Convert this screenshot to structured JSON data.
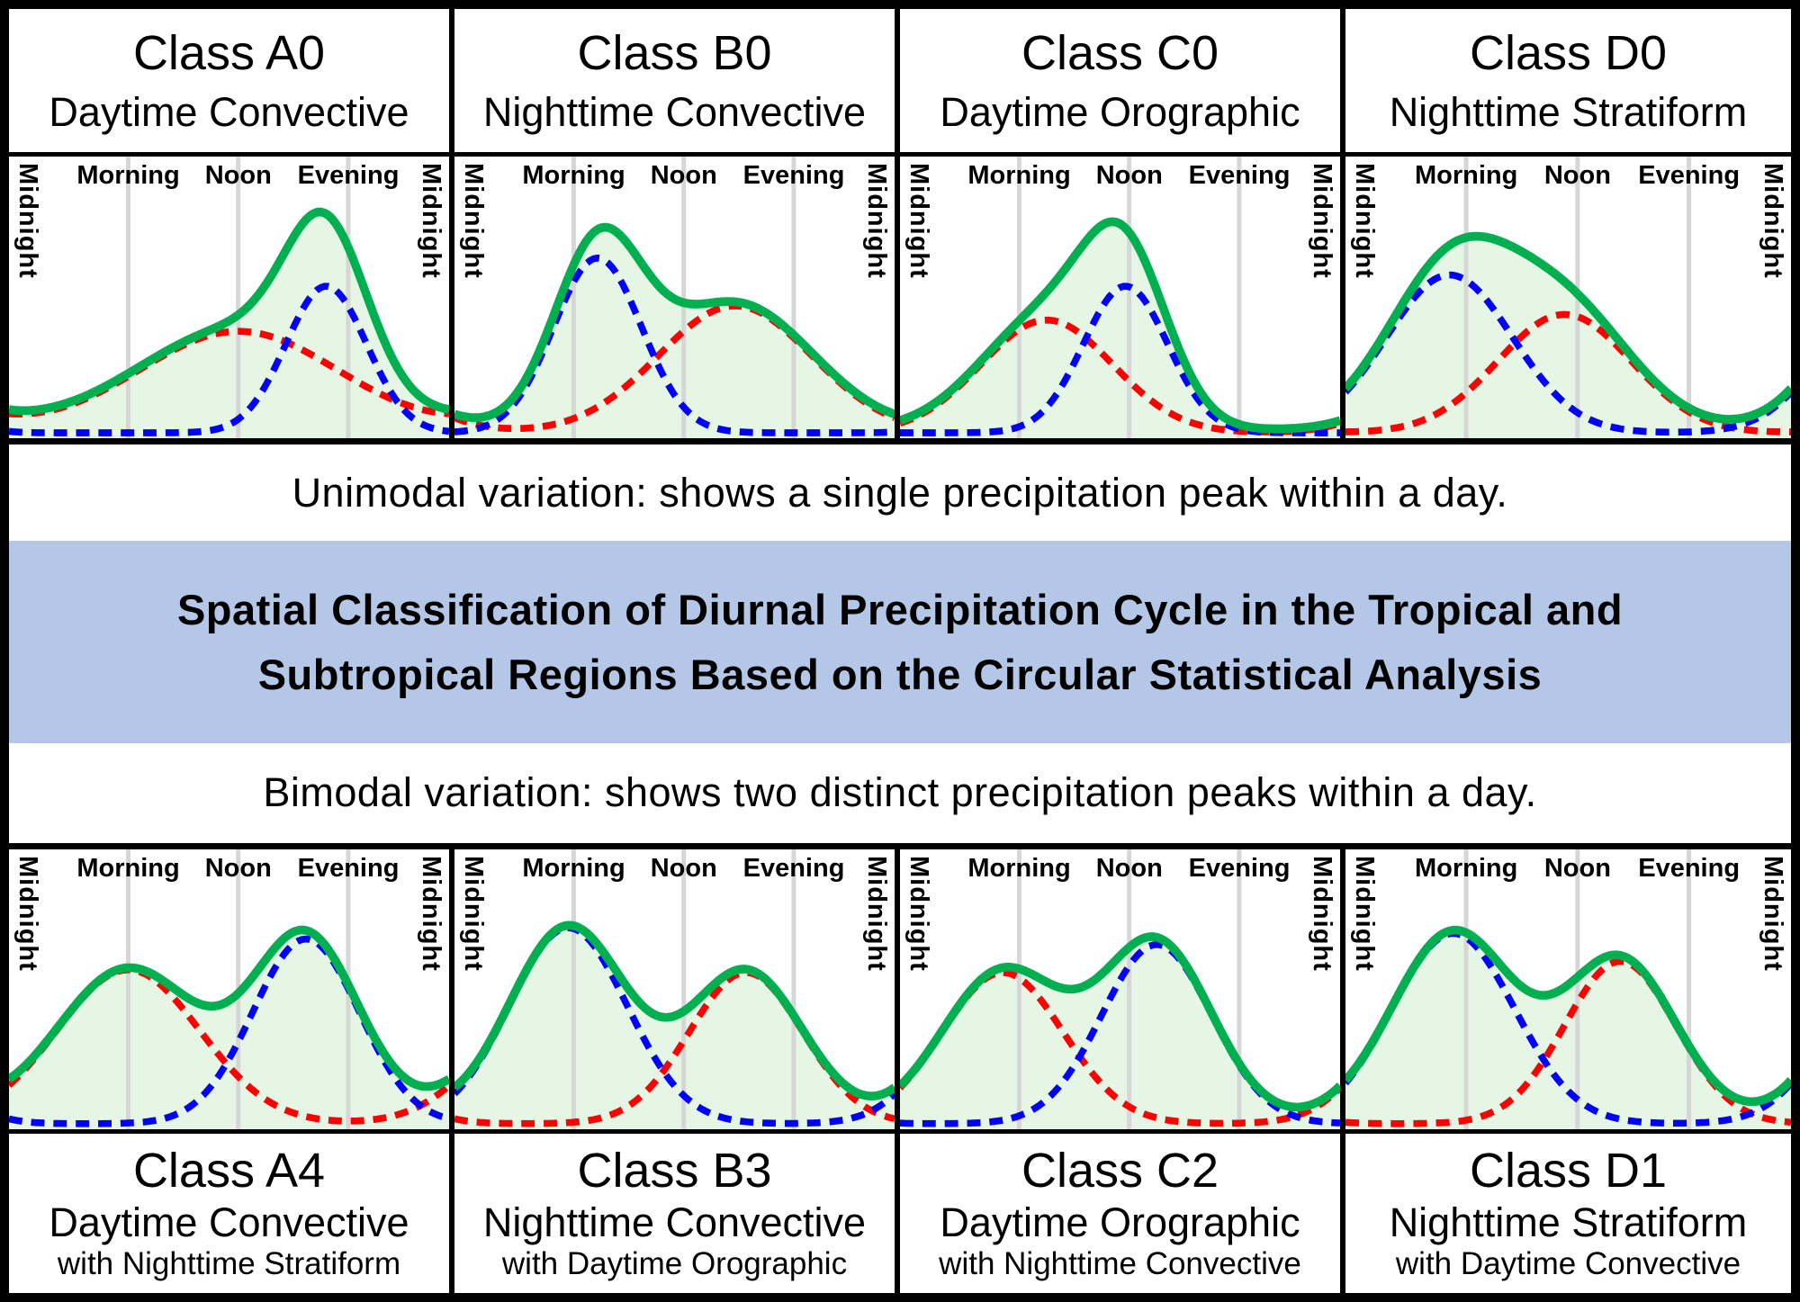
{
  "captions": {
    "unimodal": "Unimodal variation: shows a single precipitation peak within a day.",
    "bimodal": "Bimodal variation: shows two distinct precipitation peaks within a day."
  },
  "banner": {
    "bg": "#b4c7e7",
    "lines": [
      "Spatial Classification of Diurnal Precipitation Cycle in the Tropical and",
      "Subtropical Regions Based on the Circular Statistical Analysis"
    ]
  },
  "axis": {
    "midnight": "Midnight",
    "morning": "Morning",
    "noon": "Noon",
    "evening": "Evening",
    "range_hours": [
      0,
      24
    ],
    "gridline_hours": [
      6.5,
      12.5,
      18.5
    ],
    "tick_labels": [
      "Midnight",
      "Morning",
      "Noon",
      "Evening",
      "Midnight"
    ]
  },
  "colors": {
    "total_line": "#00B050",
    "area_fill": "#E6F6E4",
    "component_red": "#FF0000",
    "component_blue": "#0000FF",
    "gridline": "#D6D6D6",
    "border": "#000000",
    "banner_bg": "#B4C7E7"
  },
  "chart_data": [
    {
      "id": "A0",
      "type": "line",
      "row": "top",
      "modality": "unimodal",
      "class_label": "Class A0",
      "type_label": "Daytime Convective",
      "sub_label": "",
      "curves": [
        {
          "name": "red-dashed-component",
          "style": "dashed",
          "color_key": "component_red",
          "peak_hour": 12.5,
          "peak_height": 0.36,
          "sigma_hours": 5.5
        },
        {
          "name": "blue-dashed-component",
          "style": "dashed",
          "color_key": "component_blue",
          "peak_hour": 17.3,
          "peak_height": 0.52,
          "sigma_hours": 2.2
        },
        {
          "name": "green-total",
          "style": "solid",
          "color_key": "total_line",
          "definition": "sum_of_dashed_components_plus_base",
          "base": 0.03
        }
      ]
    },
    {
      "id": "B0",
      "type": "line",
      "row": "top",
      "modality": "unimodal",
      "class_label": "Class B0",
      "type_label": "Nighttime Convective",
      "sub_label": "",
      "curves": [
        {
          "name": "red-dashed-component",
          "style": "dashed",
          "color_key": "component_red",
          "peak_hour": 15.3,
          "peak_height": 0.45,
          "sigma_hours": 4.2
        },
        {
          "name": "blue-dashed-component",
          "style": "dashed",
          "color_key": "component_blue",
          "peak_hour": 7.8,
          "peak_height": 0.62,
          "sigma_hours": 2.4
        },
        {
          "name": "green-total",
          "style": "solid",
          "color_key": "total_line",
          "definition": "sum_of_dashed_components_plus_base",
          "base": 0.03
        }
      ]
    },
    {
      "id": "C0",
      "type": "line",
      "row": "top",
      "modality": "unimodal",
      "class_label": "Class C0",
      "type_label": "Daytime Orographic",
      "sub_label": "",
      "curves": [
        {
          "name": "red-dashed-component",
          "style": "dashed",
          "color_key": "component_red",
          "peak_hour": 8.0,
          "peak_height": 0.4,
          "sigma_hours": 3.6
        },
        {
          "name": "blue-dashed-component",
          "style": "dashed",
          "color_key": "component_blue",
          "peak_hour": 12.3,
          "peak_height": 0.52,
          "sigma_hours": 2.3
        },
        {
          "name": "green-total",
          "style": "solid",
          "color_key": "total_line",
          "definition": "sum_of_dashed_components_plus_base",
          "base": 0.03
        }
      ]
    },
    {
      "id": "D0",
      "type": "line",
      "row": "top",
      "modality": "unimodal",
      "class_label": "Class D0",
      "type_label": "Nighttime Stratiform",
      "sub_label": "",
      "curves": [
        {
          "name": "red-dashed-component",
          "style": "dashed",
          "color_key": "component_red",
          "peak_hour": 11.8,
          "peak_height": 0.42,
          "sigma_hours": 3.6
        },
        {
          "name": "blue-dashed-component",
          "style": "dashed",
          "color_key": "component_blue",
          "peak_hour": 5.6,
          "peak_height": 0.56,
          "sigma_hours": 3.4
        },
        {
          "name": "green-total",
          "style": "solid",
          "color_key": "total_line",
          "definition": "sum_of_dashed_components_plus_base",
          "base": 0.03
        }
      ]
    },
    {
      "id": "A4",
      "type": "line",
      "row": "bottom",
      "modality": "bimodal",
      "class_label": "Class A4",
      "type_label": "Daytime Convective",
      "sub_label": "with Nighttime Stratiform",
      "curves": [
        {
          "name": "red-dashed-component",
          "style": "dashed",
          "color_key": "component_red",
          "peak_hour": 6.5,
          "peak_height": 0.55,
          "sigma_hours": 3.9
        },
        {
          "name": "blue-dashed-component",
          "style": "dashed",
          "color_key": "component_blue",
          "peak_hour": 16.2,
          "peak_height": 0.66,
          "sigma_hours": 2.9
        },
        {
          "name": "green-total",
          "style": "solid",
          "color_key": "total_line",
          "definition": "sum_of_dashed_components_plus_base",
          "base": 0.025
        }
      ]
    },
    {
      "id": "B3",
      "type": "line",
      "row": "bottom",
      "modality": "bimodal",
      "class_label": "Class B3",
      "type_label": "Nighttime Convective",
      "sub_label": "with Daytime Orographic",
      "curves": [
        {
          "name": "red-dashed-component",
          "style": "dashed",
          "color_key": "component_red",
          "peak_hour": 15.9,
          "peak_height": 0.54,
          "sigma_hours": 3.1
        },
        {
          "name": "blue-dashed-component",
          "style": "dashed",
          "color_key": "component_blue",
          "peak_hour": 6.2,
          "peak_height": 0.7,
          "sigma_hours": 3.2
        },
        {
          "name": "green-total",
          "style": "solid",
          "color_key": "total_line",
          "definition": "sum_of_dashed_components_plus_base",
          "base": 0.025
        }
      ]
    },
    {
      "id": "C2",
      "type": "line",
      "row": "bottom",
      "modality": "bimodal",
      "class_label": "Class C2",
      "type_label": "Daytime Orographic",
      "sub_label": "with Nighttime Convective",
      "curves": [
        {
          "name": "red-dashed-component",
          "style": "dashed",
          "color_key": "component_red",
          "peak_hour": 5.6,
          "peak_height": 0.54,
          "sigma_hours": 3.3
        },
        {
          "name": "blue-dashed-component",
          "style": "dashed",
          "color_key": "component_blue",
          "peak_hour": 14.0,
          "peak_height": 0.64,
          "sigma_hours": 3.0
        },
        {
          "name": "green-total",
          "style": "solid",
          "color_key": "total_line",
          "definition": "sum_of_dashed_components_plus_base",
          "base": 0.025
        }
      ]
    },
    {
      "id": "D1",
      "type": "line",
      "row": "bottom",
      "modality": "bimodal",
      "class_label": "Class D1",
      "type_label": "Nighttime Stratiform",
      "sub_label": "with Daytime Convective",
      "curves": [
        {
          "name": "red-dashed-component",
          "style": "dashed",
          "color_key": "component_red",
          "peak_hour": 14.8,
          "peak_height": 0.58,
          "sigma_hours": 3.0
        },
        {
          "name": "blue-dashed-component",
          "style": "dashed",
          "color_key": "component_blue",
          "peak_hour": 5.8,
          "peak_height": 0.68,
          "sigma_hours": 3.3
        },
        {
          "name": "green-total",
          "style": "solid",
          "color_key": "total_line",
          "definition": "sum_of_dashed_components_plus_base",
          "base": 0.025
        }
      ]
    }
  ]
}
